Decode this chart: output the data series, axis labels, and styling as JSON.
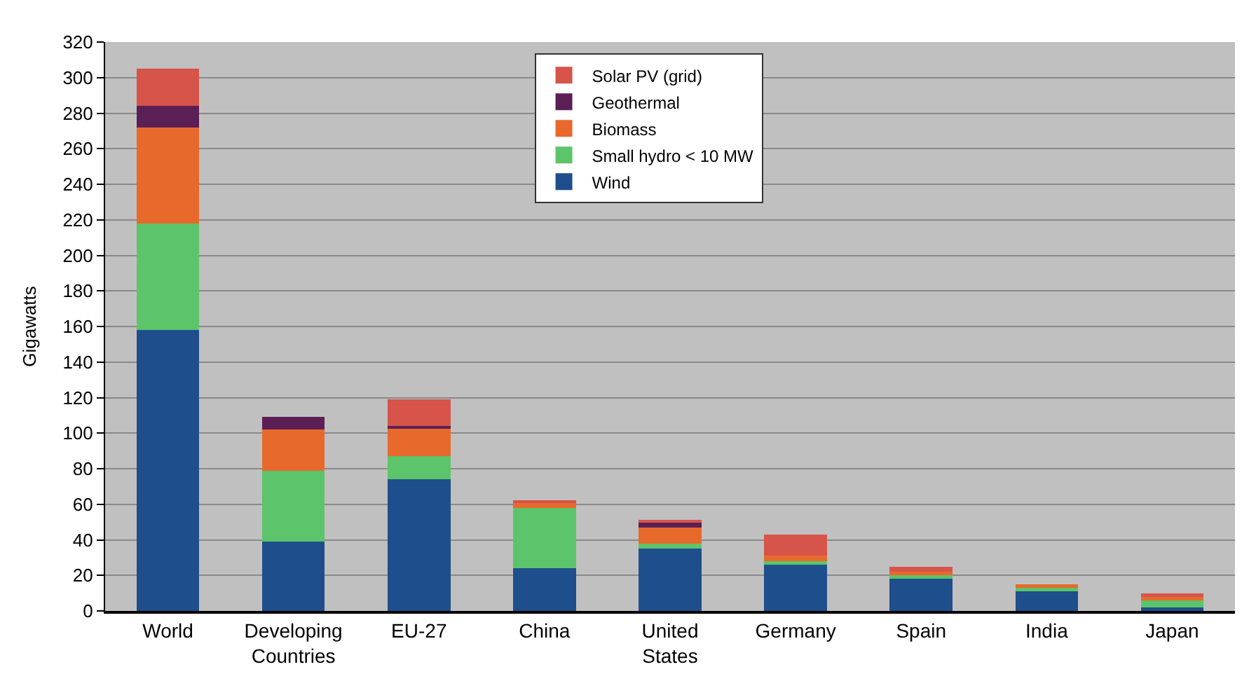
{
  "chart_data": {
    "type": "bar",
    "stacked": true,
    "ylabel": "Gigawatts",
    "categories": [
      "World",
      "Developing Countries",
      "EU-27",
      "China",
      "United States",
      "Germany",
      "Spain",
      "India",
      "Japan"
    ],
    "series": [
      {
        "name": "Wind",
        "color": "#1f4e8c",
        "values": [
          158,
          39,
          74,
          24,
          35,
          26,
          18,
          11,
          2
        ]
      },
      {
        "name": "Small hydro < 10 MW",
        "color": "#5cc46a",
        "values": [
          60,
          40,
          13,
          34,
          3,
          2,
          2,
          2,
          4
        ]
      },
      {
        "name": "Biomass",
        "color": "#e8692c",
        "values": [
          54,
          23,
          16,
          3,
          9,
          3,
          2,
          2,
          2
        ]
      },
      {
        "name": "Geothermal",
        "color": "#5b1f55",
        "values": [
          12,
          7,
          1,
          0,
          3,
          0,
          0,
          0,
          0
        ]
      },
      {
        "name": "Solar PV (grid)",
        "color": "#d6544a",
        "values": [
          21,
          0,
          15,
          1,
          1,
          12,
          3,
          0,
          2
        ]
      }
    ],
    "ylim": [
      0,
      320
    ],
    "yticks": [
      0,
      20,
      40,
      60,
      80,
      100,
      120,
      140,
      160,
      180,
      200,
      220,
      240,
      260,
      280,
      300,
      320
    ],
    "grid": "y",
    "legend": "top"
  }
}
